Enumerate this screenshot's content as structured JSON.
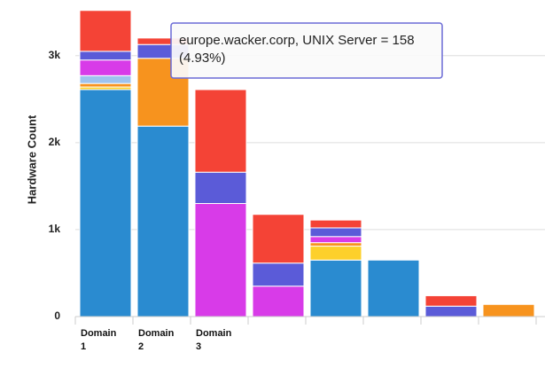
{
  "chart_data": {
    "type": "stacked_bar",
    "y_axis_label": "Hardware Count",
    "categories": [
      "Domain 1",
      "Domain 2",
      "Domain 3",
      null,
      null,
      null,
      null,
      null
    ],
    "series": [
      {
        "color": "#2a8bd0",
        "values": [
          2610,
          2190,
          0,
          0,
          650,
          650,
          0,
          0
        ]
      },
      {
        "color": "#fdd02b",
        "values": [
          30,
          0,
          0,
          0,
          160,
          0,
          0,
          0
        ]
      },
      {
        "color": "#f7931e",
        "values": [
          40,
          780,
          0,
          0,
          40,
          0,
          0,
          140
        ]
      },
      {
        "color": "#9ec3ee",
        "values": [
          90,
          0,
          0,
          0,
          0,
          0,
          0,
          0
        ]
      },
      {
        "color": "#d83be8",
        "values": [
          180,
          0,
          1300,
          350,
          70,
          0,
          0,
          0
        ]
      },
      {
        "color": "#5b5bd8",
        "values": [
          100,
          158,
          360,
          265,
          100,
          0,
          120,
          0
        ]
      },
      {
        "color": "#f44336",
        "values": [
          470,
          75,
          950,
          560,
          90,
          0,
          120,
          0
        ]
      }
    ],
    "ylim": [
      0,
      3640
    ],
    "yticks": [
      0,
      {
        "value": 1000,
        "label": "1k"
      },
      {
        "value": 2000,
        "label": "2k"
      },
      {
        "value": 3000,
        "label": "3k"
      }
    ],
    "grid": true,
    "tooltip": [
      "europe.wacker.corp, UNIX Server = 158",
      "(4.93%)"
    ]
  }
}
